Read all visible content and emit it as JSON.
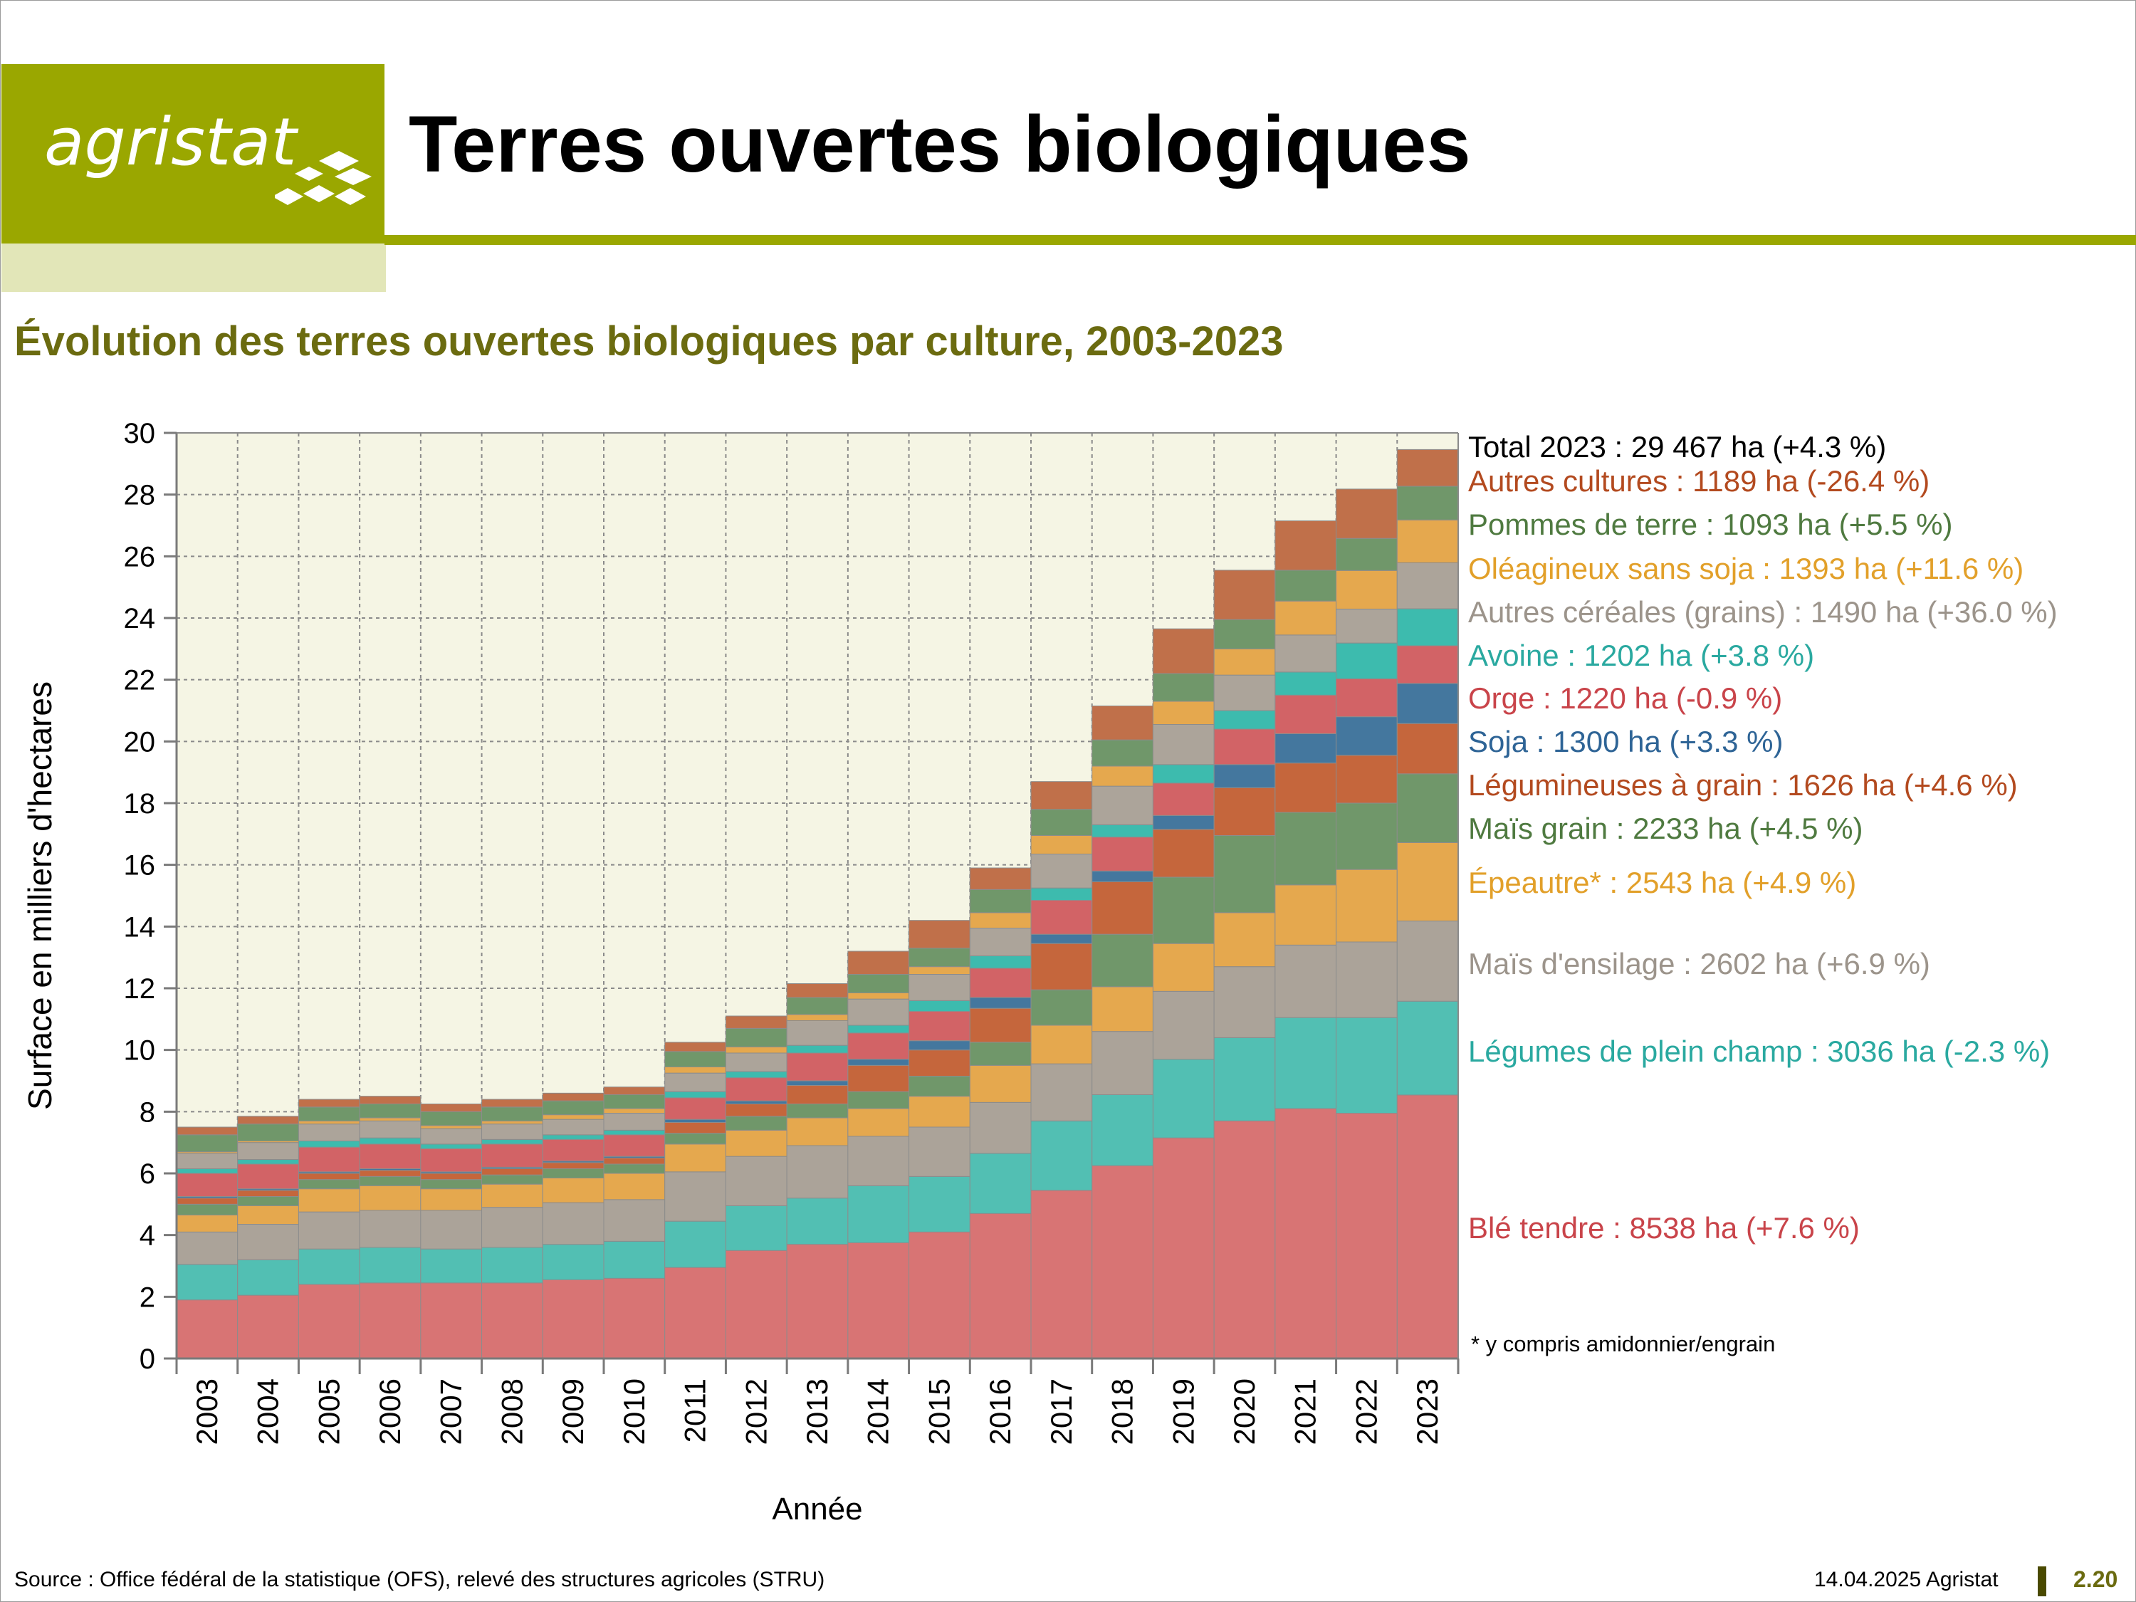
{
  "header": {
    "logo_text": "agristat",
    "title": "Terres ouvertes biologiques",
    "brand_color": "#9aa700"
  },
  "chart_data": {
    "type": "bar",
    "stacked": true,
    "title": "Évolution des terres ouvertes biologiques par culture, 2003-2023",
    "xlabel": "Année",
    "ylabel": "Surface en milliers d'hectares",
    "ylim": [
      0,
      30
    ],
    "yticks": [
      "0",
      "2",
      "4",
      "6",
      "8",
      "10",
      "12",
      "14",
      "16",
      "18",
      "20",
      "22",
      "24",
      "26",
      "28",
      "30"
    ],
    "grid": true,
    "plot_background": "#f5f5e4",
    "categories": [
      "2003",
      "2004",
      "2005",
      "2006",
      "2007",
      "2008",
      "2009",
      "2010",
      "2011",
      "2012",
      "2013",
      "2014",
      "2015",
      "2016",
      "2017",
      "2018",
      "2019",
      "2020",
      "2021",
      "2022",
      "2023"
    ],
    "series": [
      {
        "name": "Blé tendre",
        "color": "#d87474",
        "values": [
          1.9,
          2.05,
          2.4,
          2.45,
          2.45,
          2.45,
          2.55,
          2.6,
          2.95,
          3.5,
          3.7,
          3.75,
          4.1,
          4.7,
          5.45,
          6.25,
          7.15,
          7.7,
          8.1,
          7.95,
          8.54
        ]
      },
      {
        "name": "Légumes de plein champ",
        "color": "#52bfb3",
        "values": [
          1.15,
          1.15,
          1.15,
          1.15,
          1.1,
          1.15,
          1.15,
          1.2,
          1.5,
          1.45,
          1.5,
          1.85,
          1.8,
          1.95,
          2.25,
          2.3,
          2.55,
          2.7,
          2.95,
          3.1,
          3.04
        ]
      },
      {
        "name": "Maïs d'ensilage",
        "color": "#aba399",
        "values": [
          1.05,
          1.15,
          1.2,
          1.2,
          1.25,
          1.3,
          1.35,
          1.35,
          1.6,
          1.6,
          1.7,
          1.6,
          1.6,
          1.65,
          1.85,
          2.05,
          2.2,
          2.3,
          2.35,
          2.45,
          2.6
        ]
      },
      {
        "name": "Épeautre*",
        "color": "#e5a84e",
        "values": [
          0.55,
          0.6,
          0.75,
          0.8,
          0.7,
          0.75,
          0.8,
          0.85,
          0.9,
          0.85,
          0.9,
          0.9,
          1.0,
          1.2,
          1.25,
          1.45,
          1.55,
          1.75,
          1.95,
          2.35,
          2.54
        ]
      },
      {
        "name": "Maïs grain",
        "color": "#70976a",
        "values": [
          0.35,
          0.3,
          0.3,
          0.3,
          0.3,
          0.3,
          0.3,
          0.3,
          0.35,
          0.45,
          0.45,
          0.55,
          0.65,
          0.75,
          1.15,
          1.7,
          2.15,
          2.5,
          2.35,
          2.15,
          2.23
        ]
      },
      {
        "name": "Légumineuses à grain",
        "color": "#c5663c",
        "values": [
          0.2,
          0.2,
          0.2,
          0.2,
          0.2,
          0.2,
          0.2,
          0.2,
          0.35,
          0.4,
          0.6,
          0.85,
          0.85,
          1.1,
          1.5,
          1.7,
          1.55,
          1.55,
          1.6,
          1.55,
          1.63
        ]
      },
      {
        "name": "Soja",
        "color": "#44779e",
        "values": [
          0.05,
          0.05,
          0.05,
          0.05,
          0.05,
          0.05,
          0.05,
          0.05,
          0.1,
          0.1,
          0.15,
          0.2,
          0.3,
          0.35,
          0.3,
          0.35,
          0.45,
          0.75,
          0.95,
          1.25,
          1.3
        ]
      },
      {
        "name": "Orge",
        "color": "#d26366",
        "values": [
          0.75,
          0.8,
          0.8,
          0.8,
          0.75,
          0.75,
          0.7,
          0.7,
          0.7,
          0.75,
          0.9,
          0.85,
          0.95,
          0.95,
          1.1,
          1.1,
          1.05,
          1.15,
          1.25,
          1.23,
          1.22
        ]
      },
      {
        "name": "Avoine",
        "color": "#3dbbae",
        "values": [
          0.15,
          0.15,
          0.2,
          0.2,
          0.15,
          0.15,
          0.15,
          0.15,
          0.2,
          0.2,
          0.25,
          0.25,
          0.35,
          0.4,
          0.4,
          0.4,
          0.6,
          0.6,
          0.75,
          1.16,
          1.2
        ]
      },
      {
        "name": "Autres céréales (grains)",
        "color": "#aca49a",
        "values": [
          0.5,
          0.55,
          0.55,
          0.55,
          0.5,
          0.5,
          0.5,
          0.55,
          0.6,
          0.6,
          0.8,
          0.85,
          0.85,
          0.9,
          1.1,
          1.25,
          1.3,
          1.15,
          1.2,
          1.1,
          1.49
        ]
      },
      {
        "name": "Oléagineux sans soja",
        "color": "#e5a84e",
        "values": [
          0.05,
          0.05,
          0.1,
          0.1,
          0.1,
          0.1,
          0.15,
          0.15,
          0.2,
          0.2,
          0.2,
          0.2,
          0.25,
          0.5,
          0.6,
          0.65,
          0.75,
          0.85,
          1.1,
          1.25,
          1.39
        ]
      },
      {
        "name": "Pommes de terre",
        "color": "#70976a",
        "values": [
          0.55,
          0.55,
          0.45,
          0.45,
          0.45,
          0.45,
          0.45,
          0.45,
          0.5,
          0.6,
          0.55,
          0.6,
          0.6,
          0.75,
          0.85,
          0.85,
          0.9,
          0.95,
          1.0,
          1.04,
          1.09
        ]
      },
      {
        "name": "Autres cultures",
        "color": "#c0704a",
        "values": [
          0.25,
          0.25,
          0.25,
          0.25,
          0.25,
          0.25,
          0.25,
          0.25,
          0.3,
          0.4,
          0.45,
          0.75,
          0.9,
          0.7,
          0.9,
          1.1,
          1.45,
          1.6,
          1.6,
          1.6,
          1.19
        ]
      }
    ],
    "legend": [
      {
        "text": "Total 2023 : 29 467 ha (+4.3 %)",
        "color": "#000000"
      },
      {
        "text": "Autres cultures : 1189 ha (-26.4 %)",
        "color": "#b34a1f"
      },
      {
        "text": "Pommes de terre : 1093 ha (+5.5 %)",
        "color": "#4f7a40"
      },
      {
        "text": "Oléagineux sans soja : 1393 ha (+11.6 %)",
        "color": "#e2a02a"
      },
      {
        "text": "Autres céréales (grains) : 1490 ha (+36.0 %)",
        "color": "#9c948b"
      },
      {
        "text": "Avoine : 1202 ha (+3.8 %)",
        "color": "#2aa9a0"
      },
      {
        "text": "Orge : 1220 ha (-0.9 %)",
        "color": "#c9444a"
      },
      {
        "text": "Soja : 1300 ha (+3.3 %)",
        "color": "#2e6496"
      },
      {
        "text": "Légumineuses à grain : 1626 ha (+4.6 %)",
        "color": "#b34a1f"
      },
      {
        "text": "Maïs grain : 2233 ha (+4.5 %)",
        "color": "#4f7a40"
      },
      {
        "text": "Épeautre* : 2543 ha (+4.9 %)",
        "color": "#e2a02a"
      },
      {
        "text": "Maïs d'ensilage : 2602 ha (+6.9 %)",
        "color": "#9c948b"
      },
      {
        "text": "Légumes de plein champ : 3036 ha (-2.3 %)",
        "color": "#2aa9a0"
      },
      {
        "text": "Blé tendre : 8538 ha (+7.6 %)",
        "color": "#c9444a"
      }
    ],
    "footnote": "* y compris amidonnier/engrain"
  },
  "footer": {
    "source": "Source : Office fédéral de la statistique (OFS), relevé des structures agricoles (STRU)",
    "date": "14.04.2025 Agristat",
    "page": "2.20"
  }
}
